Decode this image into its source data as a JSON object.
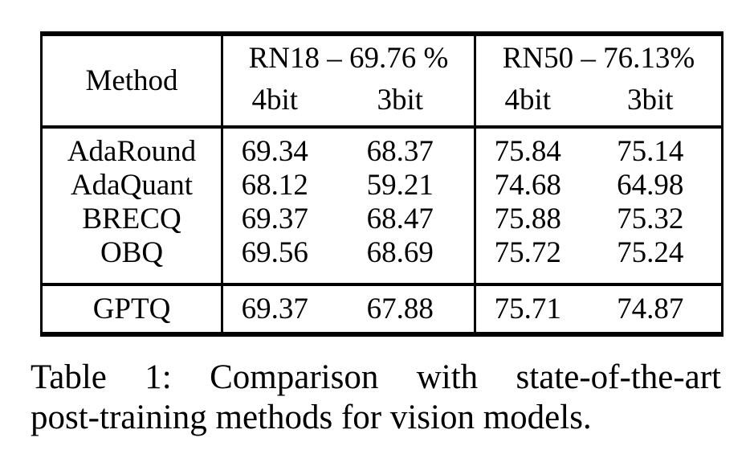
{
  "table": {
    "columns": {
      "method_header": "Method",
      "groups": [
        {
          "label": "RN18 – 69.76 %",
          "sub": [
            "4bit",
            "3bit"
          ]
        },
        {
          "label": "RN50 – 76.13%",
          "sub": [
            "4bit",
            "3bit"
          ]
        }
      ]
    },
    "rows": [
      {
        "method": "AdaRound",
        "values": [
          "69.34",
          "68.37",
          "75.84",
          "75.14"
        ]
      },
      {
        "method": "AdaQuant",
        "values": [
          "68.12",
          "59.21",
          "74.68",
          "64.98"
        ]
      },
      {
        "method": "BRECQ",
        "values": [
          "69.37",
          "68.47",
          "75.88",
          "75.32"
        ]
      },
      {
        "method": "OBQ",
        "values": [
          "69.56",
          "68.69",
          "75.72",
          "75.24"
        ]
      }
    ],
    "highlight_row": {
      "method": "GPTQ",
      "values": [
        "69.37",
        "67.88",
        "75.71",
        "74.87"
      ]
    }
  },
  "caption": {
    "line1": "Table 1: Comparison with state-of-the-art",
    "line2": "post-training methods for vision models."
  },
  "colors": {
    "text": "#000000",
    "background": "#ffffff",
    "rule": "#000000"
  }
}
